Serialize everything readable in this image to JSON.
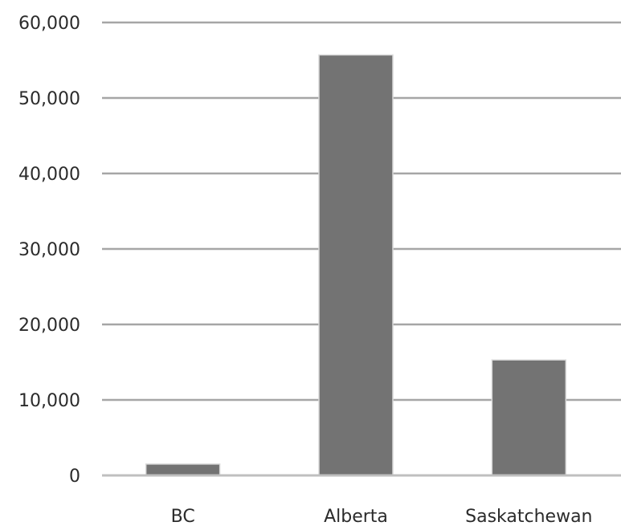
{
  "chart_data": {
    "type": "bar",
    "title": "",
    "xlabel": "",
    "ylabel": "",
    "categories": [
      "BC",
      "Alberta",
      "Saskatchewan"
    ],
    "values": [
      1500,
      55700,
      15300
    ],
    "ylim": [
      0,
      60000
    ],
    "yticks": [
      0,
      10000,
      20000,
      30000,
      40000,
      50000,
      60000
    ],
    "ytick_labels": [
      "0",
      "10,000",
      "20,000",
      "30,000",
      "40,000",
      "50,000",
      "60,000"
    ],
    "grid": true,
    "legend": "none",
    "colors": {
      "bar": "#737373",
      "bar_edge": "#d9d9d9",
      "grid": "#a6a6a6",
      "axis": "#bfbfbf",
      "text": "#2b2b2b"
    }
  }
}
